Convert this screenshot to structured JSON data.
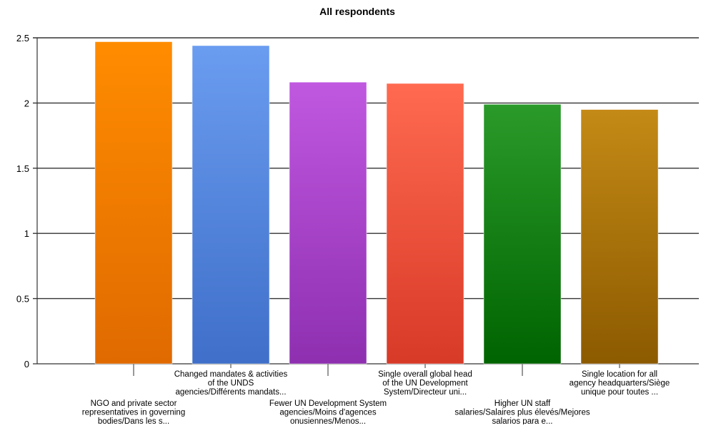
{
  "chart_data": {
    "type": "bar",
    "title": "All respondents",
    "xlabel": "",
    "ylabel": "",
    "ylim": [
      0,
      2.5
    ],
    "yticks": [
      0,
      0.5,
      1,
      1.5,
      2,
      2.5
    ],
    "ytick_labels": [
      "0",
      "0.5",
      "1",
      "1.5",
      "2",
      "2.5"
    ],
    "grid": true,
    "legend": "none",
    "categories": [
      {
        "label_lines": [
          "NGO and private sector",
          "representatives in governing",
          "bodies/Dans les s..."
        ],
        "value": 2.47,
        "color_top": "#ff8c00",
        "color_bottom": "#e06a00"
      },
      {
        "label_lines": [
          "Changed mandates & activities",
          "of the UNDS",
          "agencies/Différents mandats..."
        ],
        "value": 2.44,
        "color_top": "#6a9cf0",
        "color_bottom": "#3f6fc9"
      },
      {
        "label_lines": [
          "Fewer UN Development System",
          "agencies/Moins d'agences",
          "onusiennes/Menos..."
        ],
        "value": 2.16,
        "color_top": "#c058e0",
        "color_bottom": "#8e2fb0"
      },
      {
        "label_lines": [
          "Single overall global head",
          "of the UN Development",
          "System/Directeur uni..."
        ],
        "value": 2.15,
        "color_top": "#ff6a50",
        "color_bottom": "#d83a28"
      },
      {
        "label_lines": [
          "Higher UN staff",
          "salaries/Salaires plus élevés/Mejores",
          "salarios para e..."
        ],
        "value": 1.99,
        "color_top": "#2a9a2a",
        "color_bottom": "#006400"
      },
      {
        "label_lines": [
          "Single location for all",
          "agency headquarters/Siège",
          "unique pour toutes ..."
        ],
        "value": 1.95,
        "color_top": "#c48a16",
        "color_bottom": "#8c5a00"
      }
    ]
  }
}
